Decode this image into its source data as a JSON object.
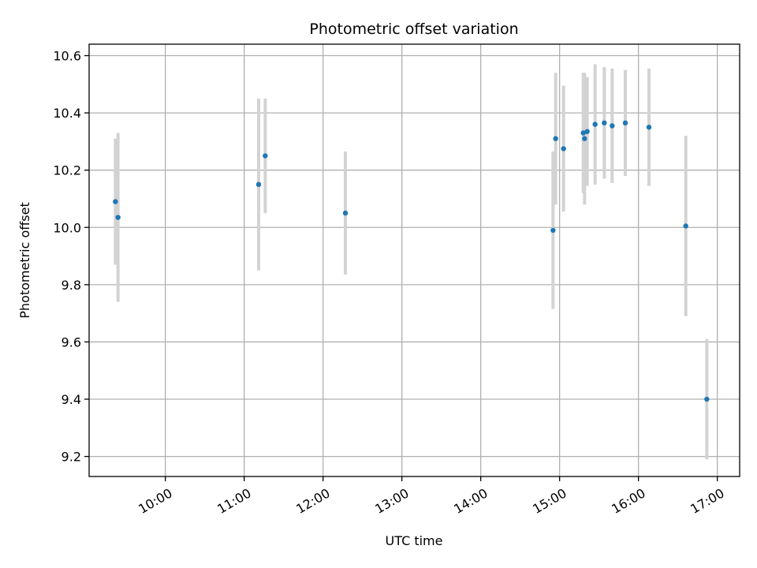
{
  "chart_data": {
    "type": "scatter",
    "title": "Photometric offset variation",
    "xlabel": "UTC time",
    "ylabel": "Photometric offset",
    "x_ticks": [
      "10:00",
      "11:00",
      "12:00",
      "13:00",
      "14:00",
      "15:00",
      "16:00",
      "17:00"
    ],
    "y_ticks": [
      "9.2",
      "9.4",
      "9.6",
      "9.8",
      "10.0",
      "10.2",
      "10.4",
      "10.6"
    ],
    "xlim": [
      "09:02",
      "17:17"
    ],
    "ylim": [
      9.13,
      10.64
    ],
    "grid": true,
    "colors": {
      "point": "#1f77b4",
      "errorbar": "#d3d3d3"
    },
    "points": [
      {
        "time": "09:22",
        "y": 10.09,
        "yerr": 0.22
      },
      {
        "time": "09:24",
        "y": 10.035,
        "yerr": 0.295
      },
      {
        "time": "11:11",
        "y": 10.15,
        "yerr": 0.3
      },
      {
        "time": "11:16",
        "y": 10.25,
        "yerr": 0.2
      },
      {
        "time": "12:17",
        "y": 10.05,
        "yerr": 0.215
      },
      {
        "time": "14:55",
        "y": 9.99,
        "yerr": 0.275
      },
      {
        "time": "14:57",
        "y": 10.31,
        "yerr": 0.23
      },
      {
        "time": "15:03",
        "y": 10.275,
        "yerr": 0.22
      },
      {
        "time": "15:18",
        "y": 10.33,
        "yerr": 0.21
      },
      {
        "time": "15:19",
        "y": 10.31,
        "yerr": 0.23
      },
      {
        "time": "15:21",
        "y": 10.335,
        "yerr": 0.19
      },
      {
        "time": "15:27",
        "y": 10.36,
        "yerr": 0.21
      },
      {
        "time": "15:34",
        "y": 10.365,
        "yerr": 0.195
      },
      {
        "time": "15:40",
        "y": 10.355,
        "yerr": 0.2
      },
      {
        "time": "15:50",
        "y": 10.365,
        "yerr": 0.185
      },
      {
        "time": "16:08",
        "y": 10.35,
        "yerr": 0.205
      },
      {
        "time": "16:36",
        "y": 10.005,
        "yerr": 0.315
      },
      {
        "time": "16:52",
        "y": 9.4,
        "yerr": 0.21
      }
    ]
  }
}
